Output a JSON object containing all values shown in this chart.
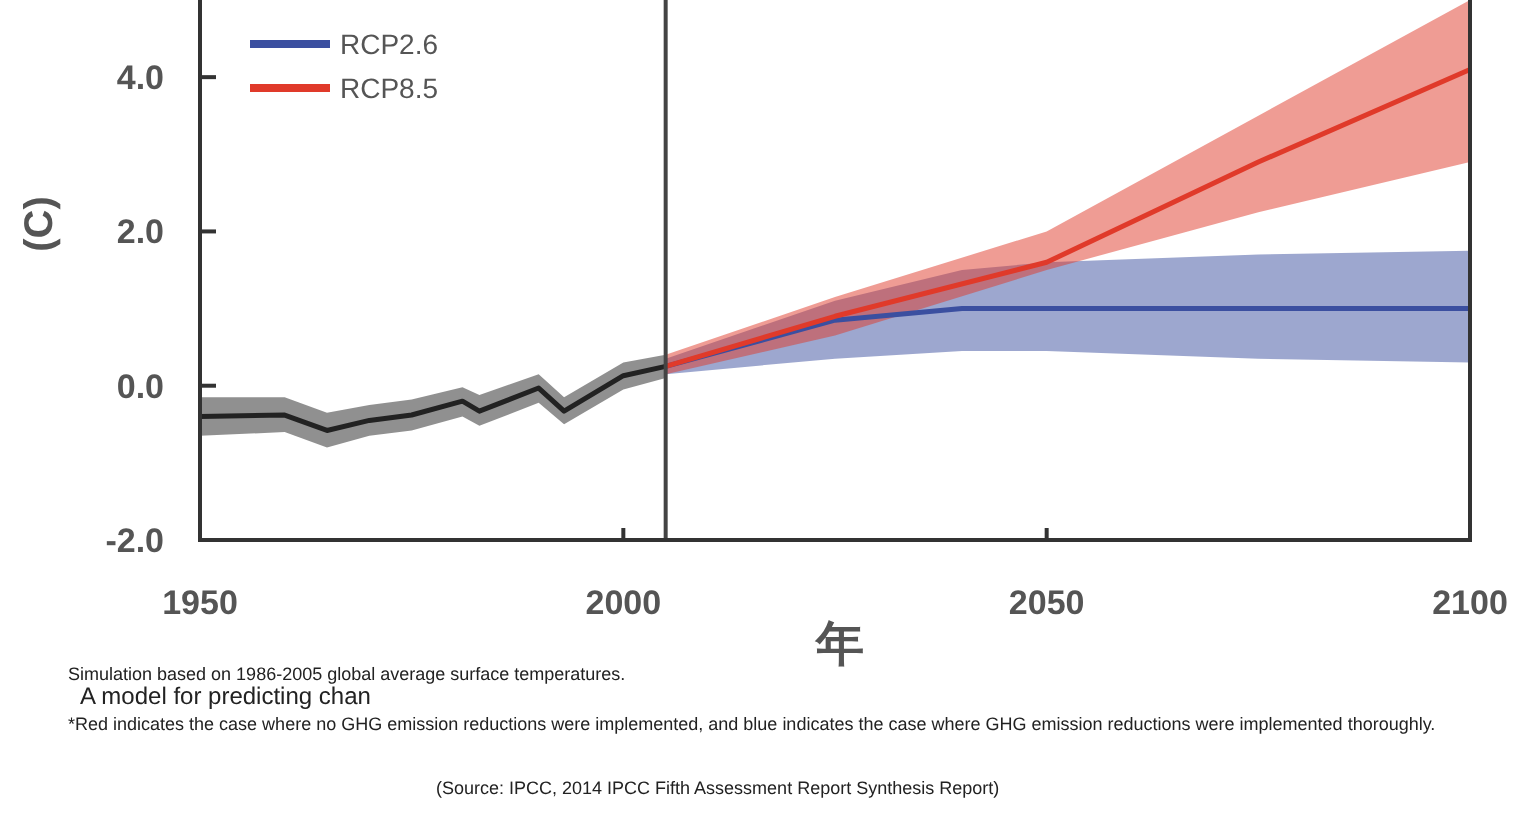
{
  "chart_data": {
    "type": "line",
    "xlabel": "年",
    "ylabel": "(C)",
    "xlim": [
      1950,
      2100
    ],
    "ylim": [
      -2,
      5
    ],
    "xticks": [
      1950,
      2000,
      2050,
      2100
    ],
    "yticks": [
      {
        "value": -2,
        "label": "-2.0"
      },
      {
        "value": 0,
        "label": "0.0"
      },
      {
        "value": 2,
        "label": "2.0"
      },
      {
        "value": 4,
        "label": "4.0"
      }
    ],
    "series": [
      {
        "color": "#222222",
        "x": [
          1950,
          1960,
          1965,
          1970,
          1975,
          1981,
          1983,
          1990,
          1993,
          2000,
          2005
        ],
        "values": [
          -0.4,
          -0.38,
          -0.58,
          -0.45,
          -0.38,
          -0.2,
          -0.33,
          -0.03,
          -0.33,
          0.13,
          0.25
        ],
        "lower": [
          -0.65,
          -0.6,
          -0.8,
          -0.65,
          -0.58,
          -0.4,
          -0.52,
          -0.22,
          -0.5,
          -0.05,
          0.1
        ],
        "upper": [
          -0.15,
          -0.15,
          -0.35,
          -0.25,
          -0.18,
          -0.02,
          -0.12,
          0.15,
          -0.15,
          0.3,
          0.4
        ]
      },
      {
        "name": "RCP2.6",
        "color": "#3b4fa0",
        "x": [
          2005,
          2025,
          2040,
          2050,
          2075,
          2100
        ],
        "values": [
          0.25,
          0.85,
          1.0,
          1.0,
          1.0,
          1.0
        ],
        "lower": [
          0.15,
          0.35,
          0.45,
          0.45,
          0.35,
          0.3
        ],
        "upper": [
          0.35,
          1.1,
          1.5,
          1.6,
          1.7,
          1.75
        ]
      },
      {
        "name": "RCP8.5",
        "color": "#e03a2a",
        "x": [
          2005,
          2025,
          2050,
          2075,
          2100
        ],
        "values": [
          0.25,
          0.9,
          1.6,
          2.9,
          4.1
        ],
        "lower": [
          0.15,
          0.65,
          1.5,
          2.25,
          2.9
        ],
        "upper": [
          0.4,
          1.15,
          2.0,
          3.5,
          5.0
        ]
      }
    ],
    "ref_lines": [
      {
        "axis": "x",
        "value": 2005,
        "color": "#444444"
      }
    ],
    "legend": "top left",
    "annotations": [
      "Simulation based on 1986-2005 global average surface temperatures.",
      "A model for predicting chan",
      "*Red indicates the case where no GHG emission reductions were implemented, and blue indicates the case where GHG emission reductions were implemented thoroughly.",
      "(Source: IPCC, 2014 IPCC Fifth Assessment Report Synthesis Report)"
    ]
  }
}
